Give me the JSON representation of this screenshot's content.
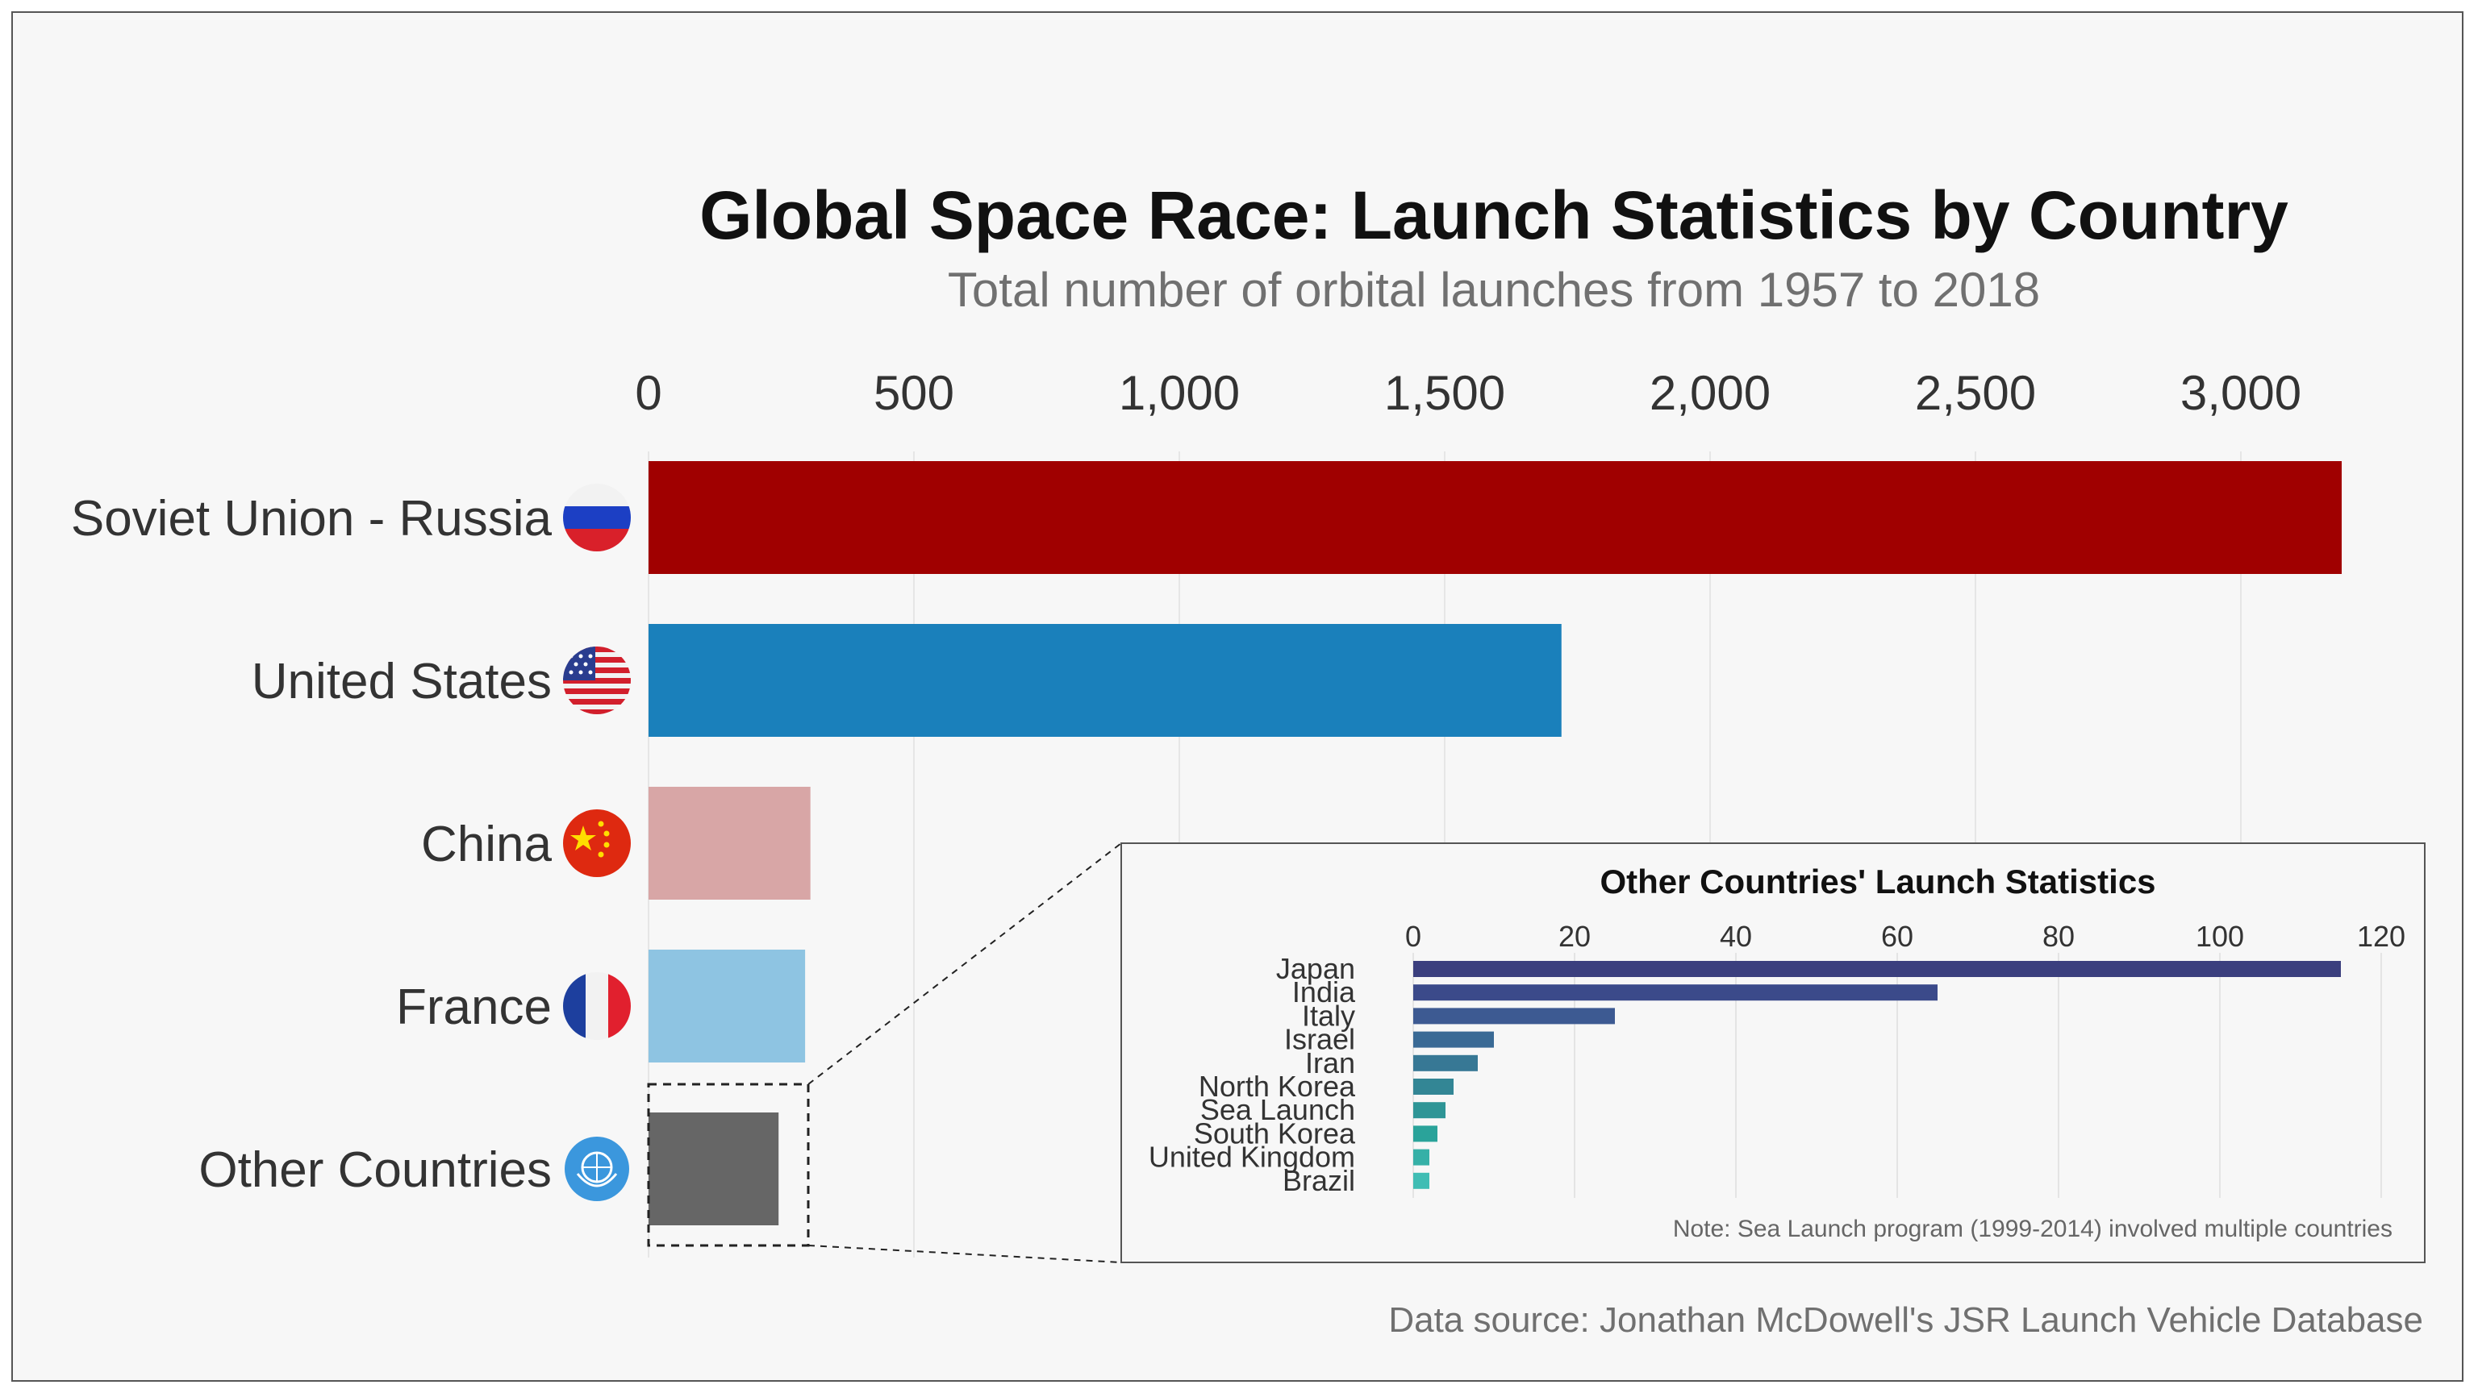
{
  "chart_data": [
    {
      "type": "bar",
      "orientation": "horizontal",
      "title": "Global Space Race: Launch Statistics by Country",
      "subtitle": "Total number of orbital launches from 1957 to 2018",
      "categories": [
        "Soviet Union - Russia",
        "United States",
        "China",
        "France",
        "Other Countries"
      ],
      "values": [
        3190,
        1720,
        305,
        295,
        245
      ],
      "colors": [
        "#a00000",
        "#1a80bb",
        "#d8a6a6",
        "#8ec4e2",
        "#666666"
      ],
      "flag_icons": [
        "russia-flag-icon",
        "usa-flag-icon",
        "china-flag-icon",
        "france-flag-icon",
        "un-flag-icon"
      ],
      "xlim": [
        0,
        3200
      ],
      "xticks": [
        0,
        500,
        1000,
        1500,
        2000,
        2500,
        3000
      ],
      "xtick_labels": [
        "0",
        "500",
        "1,000",
        "1,500",
        "2,000",
        "2,500",
        "3,000"
      ],
      "axis_position": "top",
      "grid": true,
      "source": "Data source: Jonathan McDowell's JSR Launch Vehicle Database"
    },
    {
      "type": "bar",
      "orientation": "horizontal",
      "title": "Other Countries' Launch Statistics",
      "categories": [
        "Japan",
        "India",
        "Italy",
        "Israel",
        "Iran",
        "North Korea",
        "Sea Launch",
        "South Korea",
        "United Kingdom",
        "Brazil"
      ],
      "values": [
        115,
        65,
        25,
        10,
        8,
        5,
        4,
        3,
        2,
        2
      ],
      "colors": [
        "#3b3f7e",
        "#3b4a8a",
        "#3d5a92",
        "#3a6a95",
        "#377895",
        "#338695",
        "#2e9596",
        "#2aa39a",
        "#36b0a7",
        "#40bdb4"
      ],
      "xlim": [
        0,
        120
      ],
      "xticks": [
        0,
        20,
        40,
        60,
        80,
        100,
        120
      ],
      "xtick_labels": [
        "0",
        "20",
        "40",
        "60",
        "80",
        "100",
        "120"
      ],
      "axis_position": "top",
      "grid": true,
      "note": "Note: Sea Launch program (1999-2014) involved multiple countries"
    }
  ]
}
